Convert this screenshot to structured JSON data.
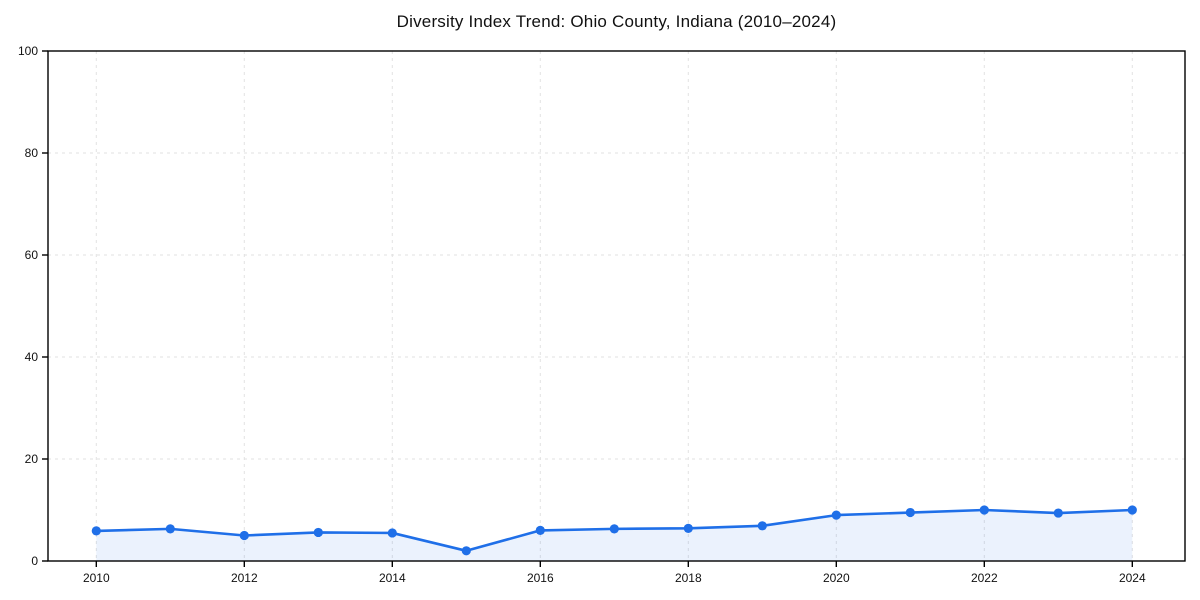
{
  "chart_data": {
    "type": "line",
    "title": "Diversity Index Trend: Ohio County, Indiana (2010–2024)",
    "x": [
      2010,
      2011,
      2012,
      2013,
      2014,
      2015,
      2016,
      2017,
      2018,
      2019,
      2020,
      2021,
      2022,
      2023,
      2024
    ],
    "series": [
      {
        "name": "Diversity Index",
        "values": [
          5.9,
          6.3,
          5.0,
          5.6,
          5.5,
          2.0,
          6.0,
          6.3,
          6.4,
          6.9,
          9.0,
          9.5,
          10.0,
          9.4,
          10.0
        ]
      }
    ],
    "xlabel": "",
    "ylabel": "",
    "ylim": [
      0,
      100
    ],
    "xticks": [
      2010,
      2012,
      2014,
      2016,
      2018,
      2020,
      2022,
      2024
    ],
    "yticks": [
      0,
      20,
      40,
      60,
      80,
      100
    ],
    "grid": "dashed",
    "legend_position": "none",
    "area_fill": true,
    "colors": {
      "line": "#1f6fe8",
      "marker": "#1f6fe8",
      "area": "#1f6fe8",
      "area_opacity": 0.09,
      "grid": "#e2e2e2",
      "spine": "#000000",
      "tick_label": "#111111",
      "background": "#ffffff"
    }
  }
}
